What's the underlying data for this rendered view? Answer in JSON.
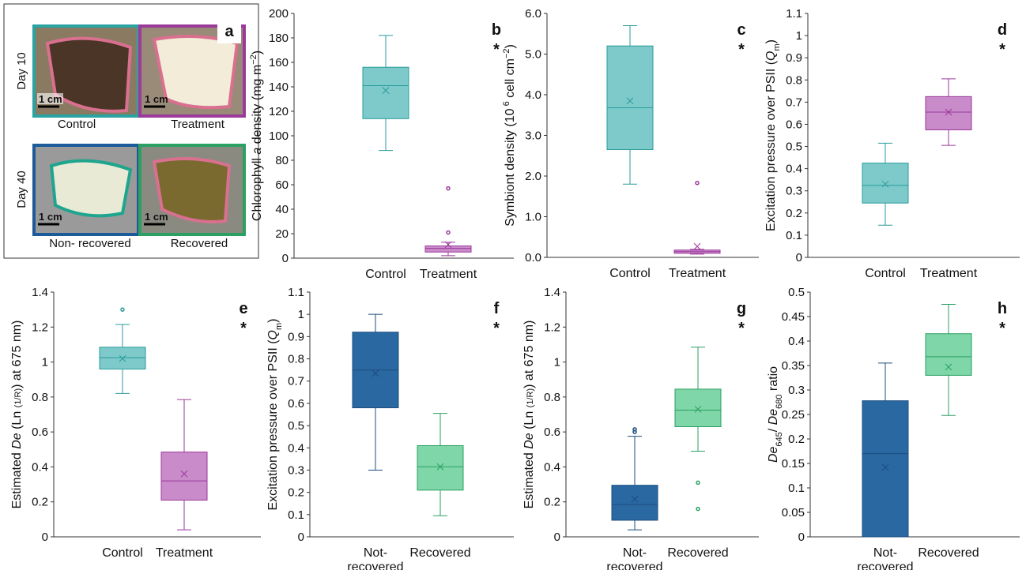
{
  "panel_a": {
    "letter": "a",
    "day_labels": [
      "Day 10",
      "Day 40"
    ],
    "scale_labels": [
      "1 cm",
      "1 cm",
      "1 cm",
      "1 cm"
    ],
    "captions": [
      "Control",
      "Treatment",
      "Non- recovered",
      "Recovered"
    ]
  },
  "chart_data": [
    {
      "type": "box",
      "label": "b",
      "annotation": "*",
      "ylabel": [
        {
          "text": "Chlorophyll "
        },
        {
          "text": "a",
          "style": "italic"
        },
        {
          "text": " density (mg m"
        },
        {
          "text": "−2",
          "style": "sup"
        },
        {
          "text": ")"
        }
      ],
      "categories": [
        "Control",
        "Treatment"
      ],
      "colors": [
        "#7ecaca",
        "#c98bc9"
      ],
      "stroke_colors": [
        "#2a9b9b",
        "#9b3a9b"
      ],
      "ylim": [
        0,
        200
      ],
      "yticks": [
        0,
        20,
        40,
        60,
        80,
        100,
        120,
        140,
        160,
        180,
        200
      ],
      "boxes": [
        {
          "min": 88,
          "q1": 114,
          "median": 141,
          "q3": 156,
          "max": 182,
          "mean": 137,
          "outliers": []
        },
        {
          "min": 2,
          "q1": 5,
          "median": 8,
          "q3": 10,
          "max": 13,
          "mean": 11,
          "outliers": [
            21,
            57
          ]
        }
      ]
    },
    {
      "type": "box",
      "label": "c",
      "annotation": "*",
      "ylabel": [
        {
          "text": "Symbiont density (10"
        },
        {
          "text": " 6",
          "style": "sup"
        },
        {
          "text": " cell cm"
        },
        {
          "text": "−2",
          "style": "sup"
        },
        {
          "text": ")"
        }
      ],
      "categories": [
        "Control",
        "Treatment"
      ],
      "colors": [
        "#7ecaca",
        "#c98bc9"
      ],
      "stroke_colors": [
        "#2a9b9b",
        "#9b3a9b"
      ],
      "ylim": [
        0,
        6
      ],
      "yticks": [
        {
          "value": 0,
          "label": "0.0"
        },
        {
          "value": 1,
          "label": "1.0"
        },
        {
          "value": 2,
          "label": "2.0"
        },
        {
          "value": 3,
          "label": "3.0"
        },
        {
          "value": 4,
          "label": "4.0"
        },
        {
          "value": 5,
          "label": "5.0"
        },
        {
          "value": 6,
          "label": "6.0"
        }
      ],
      "boxes": [
        {
          "min": 1.8,
          "q1": 2.65,
          "median": 3.68,
          "q3": 5.2,
          "max": 5.7,
          "mean": 3.85,
          "outliers": []
        },
        {
          "min": 0.08,
          "q1": 0.1,
          "median": 0.14,
          "q3": 0.18,
          "max": 0.2,
          "mean": 0.27,
          "outliers": [
            1.83
          ]
        }
      ]
    },
    {
      "type": "box",
      "label": "d",
      "annotation": "*",
      "ylabel": [
        {
          "text": "Excitation pressure over PSII ("
        },
        {
          "text": "Q",
          "style": "italic"
        },
        {
          "text": "m",
          "style": "sub"
        },
        {
          "text": ")"
        }
      ],
      "categories": [
        "Control",
        "Treatment"
      ],
      "colors": [
        "#7ecaca",
        "#c98bc9"
      ],
      "stroke_colors": [
        "#2a9b9b",
        "#9b3a9b"
      ],
      "ylim": [
        0,
        1.1
      ],
      "yticks": [
        0,
        0.1,
        0.2,
        0.3,
        0.4,
        0.5,
        0.6,
        0.7,
        0.8,
        0.9,
        1,
        1.1
      ],
      "boxes": [
        {
          "min": 0.145,
          "q1": 0.245,
          "median": 0.325,
          "q3": 0.425,
          "max": 0.515,
          "mean": 0.33,
          "outliers": []
        },
        {
          "min": 0.505,
          "q1": 0.575,
          "median": 0.655,
          "q3": 0.725,
          "max": 0.805,
          "mean": 0.655,
          "outliers": []
        }
      ]
    },
    {
      "type": "box",
      "label": "e",
      "annotation": "*",
      "ylabel": [
        {
          "text": "Estimated "
        },
        {
          "text": "De",
          "style": "italic"
        },
        {
          "text": " (Ln "
        },
        {
          "text": "(1/R)",
          "style": "small"
        },
        {
          "text": ") at 675 nm)"
        }
      ],
      "categories": [
        "Control",
        "Treatment"
      ],
      "colors": [
        "#7ecaca",
        "#c98bc9"
      ],
      "stroke_colors": [
        "#2a9b9b",
        "#9b3a9b"
      ],
      "ylim": [
        0,
        1.4
      ],
      "yticks": [
        0,
        0.2,
        0.4,
        0.6,
        0.8,
        1,
        1.2,
        1.4
      ],
      "boxes": [
        {
          "min": 0.82,
          "q1": 0.96,
          "median": 1.025,
          "q3": 1.085,
          "max": 1.215,
          "mean": 1.02,
          "outliers": [
            1.3
          ]
        },
        {
          "min": 0.04,
          "q1": 0.21,
          "median": 0.32,
          "q3": 0.485,
          "max": 0.785,
          "mean": 0.36,
          "outliers": []
        }
      ]
    },
    {
      "type": "box",
      "label": "f",
      "annotation": "*",
      "ylabel": [
        {
          "text": "Excitation pressure over PSII ("
        },
        {
          "text": "Q",
          "style": "italic"
        },
        {
          "text": "m",
          "style": "sub"
        },
        {
          "text": ")"
        }
      ],
      "categories": [
        "Not-\nrecovered",
        "Recovered"
      ],
      "colors": [
        "#2a68a2",
        "#7fd6a8"
      ],
      "stroke_colors": [
        "#1c4d7e",
        "#2aa062"
      ],
      "ylim": [
        0,
        1.1
      ],
      "yticks": [
        0,
        0.1,
        0.2,
        0.3,
        0.4,
        0.5,
        0.6,
        0.7,
        0.8,
        0.9,
        1,
        1.1
      ],
      "boxes": [
        {
          "min": 0.3,
          "q1": 0.58,
          "median": 0.75,
          "q3": 0.92,
          "max": 1.0,
          "mean": 0.735,
          "outliers": []
        },
        {
          "min": 0.095,
          "q1": 0.21,
          "median": 0.315,
          "q3": 0.41,
          "max": 0.555,
          "mean": 0.315,
          "outliers": []
        }
      ]
    },
    {
      "type": "box",
      "label": "g",
      "annotation": "*",
      "ylabel": [
        {
          "text": "Estimated "
        },
        {
          "text": "De",
          "style": "italic"
        },
        {
          "text": " (Ln "
        },
        {
          "text": "(1/R)",
          "style": "small"
        },
        {
          "text": ") at 675 nm)"
        }
      ],
      "categories": [
        "Not-\nrecovered",
        "Recovered"
      ],
      "colors": [
        "#2a68a2",
        "#7fd6a8"
      ],
      "stroke_colors": [
        "#1c4d7e",
        "#2aa062"
      ],
      "ylim": [
        0,
        1.4
      ],
      "yticks": [
        0,
        0.2,
        0.4,
        0.6,
        0.8,
        1,
        1.2,
        1.4
      ],
      "boxes": [
        {
          "min": 0.04,
          "q1": 0.095,
          "median": 0.185,
          "q3": 0.295,
          "max": 0.575,
          "mean": 0.215,
          "outliers": [
            0.6,
            0.615
          ]
        },
        {
          "min": 0.49,
          "q1": 0.63,
          "median": 0.725,
          "q3": 0.845,
          "max": 1.085,
          "mean": 0.73,
          "outliers": [
            0.31,
            0.16
          ]
        }
      ]
    },
    {
      "type": "box",
      "label": "h",
      "annotation": "*",
      "ylabel": [
        {
          "text": "De",
          "style": "italic"
        },
        {
          "text": "645",
          "style": "sub"
        },
        {
          "text": "/ "
        },
        {
          "text": "De",
          "style": "italic"
        },
        {
          "text": "680",
          "style": "sub"
        },
        {
          "text": " ratio"
        }
      ],
      "categories": [
        "Not-\nrecovered",
        "Recovered"
      ],
      "colors": [
        "#2a68a2",
        "#7fd6a8"
      ],
      "stroke_colors": [
        "#1c4d7e",
        "#2aa062"
      ],
      "ylim": [
        0,
        0.5
      ],
      "yticks": [
        0,
        0.05,
        0.1,
        0.15,
        0.2,
        0.25,
        0.3,
        0.35,
        0.4,
        0.45,
        0.5
      ],
      "boxes": [
        {
          "min": 0,
          "q1": 0,
          "median": 0.17,
          "q3": 0.278,
          "max": 0.355,
          "mean": 0.142,
          "outliers": []
        },
        {
          "min": 0.248,
          "q1": 0.33,
          "median": 0.368,
          "q3": 0.415,
          "max": 0.475,
          "mean": 0.347,
          "outliers": []
        }
      ]
    }
  ]
}
